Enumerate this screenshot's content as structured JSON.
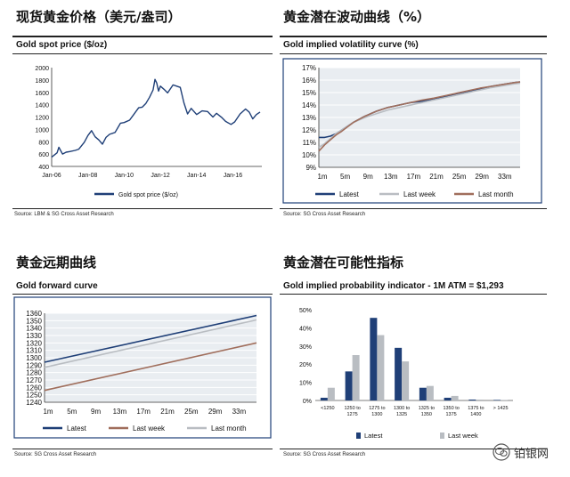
{
  "colors": {
    "navy": "#1f3f77",
    "grey": "#b9bdc2",
    "brown": "#a06e5c",
    "panelbg": "#e9edf1",
    "border": "#1f3f77"
  },
  "watermark": {
    "text": "铂银网"
  },
  "panels": {
    "spot": {
      "cn_title": "现货黄金价格（美元/盎司）",
      "en_title": "Gold spot price ($/oz)",
      "source": "Source: LBM & SG Cross Asset Research"
    },
    "vol": {
      "cn_title": "黄金潜在波动曲线（%）",
      "en_title": "Gold implied volatility curve (%)",
      "source": "Source: SG Cross Asset Research"
    },
    "fwd": {
      "cn_title": "黄金远期曲线",
      "en_title": "Gold forward curve",
      "source": "Source: SG Cross Asset Research"
    },
    "prob": {
      "cn_title": "黄金潜在可能性指标",
      "en_title": "Gold implied probability indicator - 1M ATM = $1,293",
      "source": "Source: SG Cross Asset Research"
    }
  },
  "chart_data": [
    {
      "id": "spot",
      "type": "line",
      "x_ticks": [
        "Jan-06",
        "Jan-08",
        "Jan-10",
        "Jan-12",
        "Jan-14",
        "Jan-16"
      ],
      "y_ticks": [
        "2000",
        "1800",
        "1600",
        "1400",
        "1200",
        "1000",
        "800",
        "600",
        "400"
      ],
      "ylim": [
        400,
        2000
      ],
      "xlim": [
        2006.0,
        2017.6
      ],
      "series": [
        {
          "name": "Gold spot price ($/oz)",
          "color": "#1f3f77",
          "x": [
            2006.0,
            2006.3,
            2006.4,
            2006.6,
            2006.8,
            2007.0,
            2007.3,
            2007.5,
            2007.8,
            2008.0,
            2008.2,
            2008.4,
            2008.6,
            2008.8,
            2009.0,
            2009.2,
            2009.5,
            2009.8,
            2010.0,
            2010.3,
            2010.5,
            2010.8,
            2011.0,
            2011.2,
            2011.4,
            2011.6,
            2011.7,
            2011.8,
            2011.9,
            2012.0,
            2012.2,
            2012.4,
            2012.7,
            2012.9,
            2013.1,
            2013.3,
            2013.5,
            2013.7,
            2014.0,
            2014.3,
            2014.6,
            2014.9,
            2015.1,
            2015.4,
            2015.6,
            2015.9,
            2016.1,
            2016.4,
            2016.7,
            2016.9,
            2017.1,
            2017.3,
            2017.5
          ],
          "values": [
            550,
            620,
            710,
            600,
            630,
            640,
            660,
            680,
            790,
            900,
            980,
            880,
            830,
            760,
            870,
            920,
            950,
            1100,
            1110,
            1150,
            1230,
            1350,
            1360,
            1420,
            1520,
            1640,
            1810,
            1750,
            1620,
            1700,
            1650,
            1590,
            1720,
            1700,
            1680,
            1430,
            1250,
            1340,
            1240,
            1300,
            1290,
            1200,
            1260,
            1190,
            1130,
            1080,
            1120,
            1250,
            1330,
            1280,
            1170,
            1240,
            1280
          ]
        }
      ]
    },
    {
      "id": "vol",
      "type": "line",
      "x_ticks": [
        "1m",
        "5m",
        "9m",
        "13m",
        "17m",
        "21m",
        "25m",
        "29m",
        "33m"
      ],
      "y_ticks": [
        "17%",
        "16%",
        "15%",
        "14%",
        "13%",
        "12%",
        "11%",
        "10%",
        "9%"
      ],
      "ylim": [
        9,
        17
      ],
      "xlim": [
        1,
        36
      ],
      "series": [
        {
          "name": "Latest",
          "color": "#1f3f77",
          "x": [
            1,
            2,
            3,
            4,
            5,
            7,
            9,
            11,
            13,
            15,
            17,
            19,
            21,
            23,
            25,
            27,
            29,
            31,
            33,
            35,
            36
          ],
          "values": [
            11.4,
            11.4,
            11.5,
            11.7,
            12.0,
            12.6,
            13.1,
            13.5,
            13.8,
            14.0,
            14.2,
            14.3,
            14.5,
            14.7,
            14.9,
            15.1,
            15.3,
            15.5,
            15.65,
            15.8,
            15.85
          ]
        },
        {
          "name": "Last week",
          "color": "#b9bdc2",
          "x": [
            1,
            2,
            3,
            4,
            5,
            7,
            9,
            11,
            13,
            15,
            17,
            19,
            21,
            23,
            25,
            27,
            29,
            31,
            33,
            35,
            36
          ],
          "values": [
            10.6,
            10.9,
            11.3,
            11.7,
            12.0,
            12.6,
            13.0,
            13.3,
            13.6,
            13.8,
            14.0,
            14.2,
            14.4,
            14.6,
            14.8,
            15.0,
            15.2,
            15.4,
            15.55,
            15.7,
            15.75
          ]
        },
        {
          "name": "Last month",
          "color": "#a06e5c",
          "x": [
            1,
            2,
            3,
            4,
            5,
            7,
            9,
            11,
            13,
            15,
            17,
            19,
            21,
            23,
            25,
            27,
            29,
            31,
            33,
            35,
            36
          ],
          "values": [
            10.3,
            10.8,
            11.2,
            11.6,
            11.9,
            12.6,
            13.1,
            13.5,
            13.8,
            14.0,
            14.2,
            14.4,
            14.55,
            14.75,
            14.95,
            15.15,
            15.35,
            15.5,
            15.65,
            15.8,
            15.85
          ]
        }
      ]
    },
    {
      "id": "fwd",
      "type": "line",
      "x_ticks": [
        "1m",
        "5m",
        "9m",
        "13m",
        "17m",
        "21m",
        "25m",
        "29m",
        "33m"
      ],
      "y_ticks": [
        "1360",
        "1350",
        "1340",
        "1330",
        "1320",
        "1310",
        "1300",
        "1290",
        "1280",
        "1270",
        "1260",
        "1250",
        "1240"
      ],
      "ylim": [
        1240,
        1360
      ],
      "xlim": [
        1,
        36
      ],
      "series": [
        {
          "name": "Latest",
          "color": "#1f3f77",
          "x": [
            1,
            36
          ],
          "values": [
            1294,
            1357
          ]
        },
        {
          "name": "Last week",
          "color": "#a06e5c",
          "x": [
            1,
            36
          ],
          "values": [
            1256,
            1320
          ]
        },
        {
          "name": "Last month",
          "color": "#b9bdc2",
          "x": [
            1,
            36
          ],
          "values": [
            1287,
            1351
          ]
        }
      ]
    },
    {
      "id": "prob",
      "type": "bar",
      "categories": [
        "<1250",
        "1250 to 1275",
        "1275 to 1300",
        "1300 to 1325",
        "1325 to 1350",
        "1350 to 1375",
        "1375 to 1400",
        "> 1425"
      ],
      "y_ticks": [
        "50%",
        "40%",
        "30%",
        "20%",
        "10%",
        "0%"
      ],
      "ylim": [
        0,
        50
      ],
      "series": [
        {
          "name": "Latest",
          "color": "#1f3f77",
          "values": [
            1.5,
            16,
            45.5,
            29,
            7,
            1.5,
            0.5,
            0.3
          ]
        },
        {
          "name": "Last week",
          "color": "#b9bdc2",
          "values": [
            7,
            25,
            36,
            21.5,
            8,
            2.5,
            0.5,
            0.3
          ]
        }
      ]
    }
  ]
}
